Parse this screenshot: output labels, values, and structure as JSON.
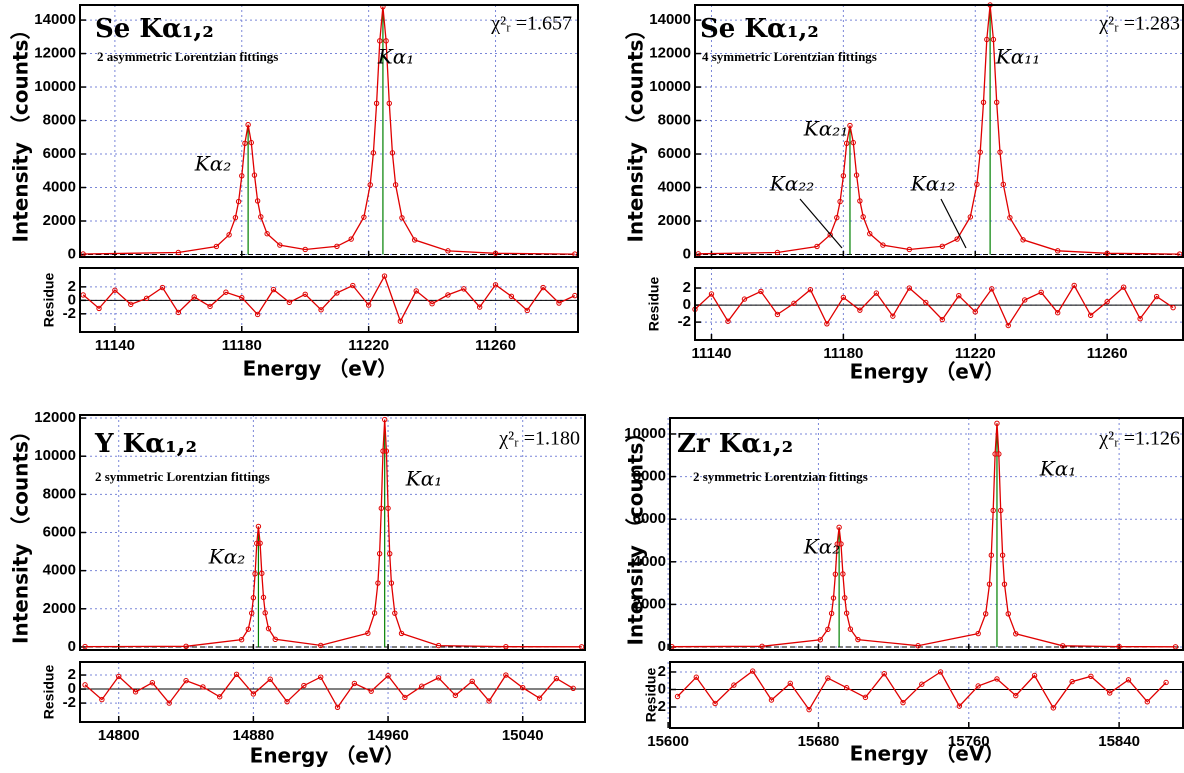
{
  "chart_data": [
    {
      "type": "line",
      "title": "Se Kα₁,₂",
      "subtitle": "2 asymmetric Lorentzian fittings",
      "chi": "χ²ᵣ =1.657",
      "ylabel": "Intensity （counts）",
      "annotations": [
        "Kα₂",
        "Kα₁"
      ],
      "x": [
        11130,
        11160,
        11172,
        11176,
        11178,
        11179,
        11180,
        11181,
        11182,
        11183,
        11184,
        11185,
        11186,
        11188,
        11192,
        11200,
        11210,
        11214.5,
        11218.5,
        11220.5,
        11221.5,
        11222.5,
        11223.5,
        11224.5,
        11225.5,
        11226.5,
        11227.5,
        11228.5,
        11230.5,
        11234.5,
        11245,
        11260,
        11285
      ],
      "values": [
        30,
        120,
        480,
        1175,
        2200,
        3160,
        4700,
        6640,
        7750,
        6680,
        4740,
        3200,
        2250,
        1240,
        560,
        300,
        490,
        920,
        2230,
        4160,
        6070,
        9030,
        12760,
        14800,
        12760,
        9030,
        6070,
        4160,
        2190,
        870,
        217,
        73,
        25
      ],
      "color": "#e00000",
      "vlines": [
        11182,
        11224.5
      ],
      "vline_color": "#008000",
      "xlim": [
        11129,
        11286
      ],
      "ylim": [
        -150,
        14900
      ],
      "xticks": [
        11140,
        11180,
        11220,
        11260
      ],
      "xtick_labels": false,
      "yticks": [
        0,
        2000,
        4000,
        6000,
        8000,
        10000,
        12000,
        14000
      ],
      "grid": true
    },
    {
      "type": "line",
      "ylabel": "Residue",
      "xlabel": "Energy （eV）",
      "x": [
        11130,
        11135,
        11140,
        11145,
        11150,
        11155,
        11160,
        11165,
        11170,
        11175,
        11180,
        11185,
        11190,
        11195,
        11200,
        11205,
        11210,
        11215,
        11220,
        11225,
        11230,
        11235,
        11240,
        11245,
        11250,
        11255,
        11260,
        11265,
        11270,
        11275,
        11280,
        11285
      ],
      "values": [
        0.8,
        -1.2,
        1.5,
        -0.6,
        0.3,
        1.9,
        -1.8,
        0.5,
        -0.9,
        1.2,
        0.4,
        -2.1,
        1.6,
        -0.3,
        0.9,
        -1.4,
        1.1,
        2.2,
        -0.7,
        3.6,
        -3.1,
        1.4,
        -0.5,
        0.8,
        1.7,
        -1.0,
        2.3,
        0.6,
        -1.5,
        1.9,
        -0.4,
        0.7
      ],
      "color": "#e00000",
      "xlim": [
        11129,
        11286
      ],
      "ylim": [
        -4.7,
        4.8
      ],
      "xticks": [
        11140,
        11180,
        11220,
        11260
      ],
      "yticks": [
        -2,
        0,
        2
      ],
      "grid": true
    },
    {
      "type": "line",
      "title": "Se Kα₁,₂",
      "subtitle": "4 symmetric Lorentzian fittings",
      "chi": "χ²ᵣ =1.283",
      "ylabel": "Intensity （counts）",
      "annotations": [
        "Kα₂₁",
        "Kα₁₁",
        "Kα₂₂",
        "Kα₁₂"
      ],
      "x": [
        11136,
        11160,
        11172,
        11176,
        11178,
        11179,
        11180,
        11181,
        11182,
        11183,
        11184,
        11185,
        11186,
        11188,
        11192,
        11200,
        11210,
        11214.5,
        11218.5,
        11220.5,
        11221.5,
        11222.5,
        11223.5,
        11224.5,
        11225.5,
        11226.5,
        11227.5,
        11228.5,
        11230.5,
        11234.5,
        11245,
        11260,
        11282
      ],
      "values": [
        40,
        120,
        480,
        1175,
        2200,
        3160,
        4700,
        6640,
        7700,
        6680,
        4740,
        3200,
        2250,
        1240,
        560,
        300,
        490,
        920,
        2240,
        4190,
        6110,
        9090,
        12840,
        14900,
        12840,
        9090,
        6110,
        4190,
        2200,
        875,
        218,
        73,
        26
      ],
      "color": "#e00000",
      "vlines": [
        11182,
        11224.5
      ],
      "vline_color": "#008000",
      "xlim": [
        11135,
        11283
      ],
      "ylim": [
        -150,
        14900
      ],
      "xticks": [
        11140,
        11180,
        11220,
        11260
      ],
      "xtick_labels": false,
      "yticks": [
        0,
        2000,
        4000,
        6000,
        8000,
        10000,
        12000,
        14000
      ],
      "grid": true
    },
    {
      "type": "line",
      "ylabel": "Residue",
      "xlabel": "Energy （eV）",
      "x": [
        11135,
        11140,
        11145,
        11150,
        11155,
        11160,
        11165,
        11170,
        11175,
        11180,
        11185,
        11190,
        11195,
        11200,
        11205,
        11210,
        11215,
        11220,
        11225,
        11230,
        11235,
        11240,
        11245,
        11250,
        11255,
        11260,
        11265,
        11270,
        11275,
        11280
      ],
      "values": [
        -0.5,
        1.3,
        -1.9,
        0.7,
        1.6,
        -1.1,
        0.2,
        1.8,
        -2.2,
        0.9,
        -0.6,
        1.4,
        -1.3,
        2.0,
        0.3,
        -1.7,
        1.1,
        -0.8,
        1.9,
        -2.4,
        0.6,
        1.5,
        -0.9,
        2.3,
        -1.2,
        0.4,
        2.1,
        -1.6,
        1.0,
        -0.3
      ],
      "color": "#e00000",
      "xlim": [
        11135,
        11283
      ],
      "ylim": [
        -4.1,
        4.35
      ],
      "xticks": [
        11140,
        11180,
        11220,
        11260
      ],
      "yticks": [
        -2,
        0,
        2
      ],
      "grid": true
    },
    {
      "type": "line",
      "title": "Y Kα₁,₂",
      "subtitle": "2 symmetric Lorentzian fittings",
      "chi": "χ²ᵣ =1.180",
      "ylabel": "Intensity （counts）",
      "annotations": [
        "Kα₂",
        "Kα₁"
      ],
      "x": [
        14780,
        14840,
        14873,
        14877,
        14879,
        14880,
        14881,
        14882,
        14883,
        14884,
        14885,
        14886,
        14887,
        14889,
        14893,
        14920,
        14948,
        14952,
        14954,
        14955,
        14956,
        14957,
        14958,
        14959,
        14960,
        14961,
        14962,
        14964,
        14968,
        14990,
        15030,
        15075
      ],
      "values": [
        20,
        35,
        380,
        930,
        1770,
        2580,
        3840,
        5430,
        6320,
        5440,
        3860,
        2600,
        1790,
        960,
        400,
        80,
        720,
        1780,
        3350,
        4890,
        7270,
        10270,
        11920,
        10270,
        7270,
        4890,
        3350,
        1770,
        710,
        72,
        14,
        7
      ],
      "color": "#e00000",
      "vlines": [
        14883,
        14958
      ],
      "vline_color": "#008000",
      "xlim": [
        14777,
        15077
      ],
      "ylim": [
        -160,
        12160
      ],
      "xticks": [
        14800,
        14880,
        14960,
        15040
      ],
      "xtick_labels": false,
      "yticks": [
        0,
        2000,
        4000,
        6000,
        8000,
        10000,
        12000
      ],
      "grid": true
    },
    {
      "type": "line",
      "ylabel": "Residue",
      "xlabel": "Energy （eV）",
      "x": [
        14780,
        14790,
        14800,
        14810,
        14820,
        14830,
        14840,
        14850,
        14860,
        14870,
        14880,
        14890,
        14900,
        14910,
        14920,
        14930,
        14940,
        14950,
        14960,
        14970,
        14980,
        14990,
        15000,
        15010,
        15020,
        15030,
        15040,
        15050,
        15060,
        15070
      ],
      "values": [
        0.6,
        -1.5,
        1.8,
        -0.4,
        0.9,
        -2.0,
        1.2,
        0.3,
        -1.1,
        2.1,
        -0.7,
        1.4,
        -1.8,
        0.5,
        1.7,
        -2.6,
        0.8,
        -0.3,
        1.9,
        -1.2,
        0.4,
        1.6,
        -0.9,
        1.1,
        -1.7,
        2.0,
        0.2,
        -1.3,
        1.5,
        0.1
      ],
      "color": "#e00000",
      "xlim": [
        14777,
        15077
      ],
      "ylim": [
        -4.7,
        3.86
      ],
      "xticks": [
        14800,
        14880,
        14960,
        15040
      ],
      "yticks": [
        -2,
        0,
        2
      ],
      "grid": true
    },
    {
      "type": "line",
      "title": "Zr Kα₁,₂",
      "subtitle": "2 symmetric Lorentzian fittings",
      "chi": "χ²ᵣ =1.126",
      "ylabel": "Intensity （counts）",
      "annotations": [
        "Kα₂",
        "Kα₁"
      ],
      "x": [
        15602,
        15650,
        15681,
        15685,
        15687,
        15688,
        15689,
        15690,
        15691,
        15692,
        15693,
        15694,
        15695,
        15697,
        15701,
        15733,
        15765,
        15769,
        15771,
        15772,
        15773,
        15774,
        15775,
        15776,
        15777,
        15778,
        15779,
        15781,
        15785,
        15810,
        15840,
        15870
      ],
      "values": [
        15,
        35,
        340,
        830,
        1580,
        2300,
        3420,
        4830,
        5620,
        4840,
        3430,
        2310,
        1590,
        840,
        350,
        60,
        630,
        1560,
        2950,
        4310,
        6410,
        9060,
        10500,
        9060,
        6410,
        4310,
        2950,
        1560,
        620,
        55,
        20,
        10
      ],
      "color": "#e00000",
      "vlines": [
        15691,
        15775
      ],
      "vline_color": "#008000",
      "xlim": [
        15601,
        15874
      ],
      "ylim": [
        -140,
        10750
      ],
      "xticks": [
        15600,
        15680,
        15760,
        15840
      ],
      "xtick_labels": false,
      "yticks": [
        0,
        2000,
        4000,
        6000,
        8000,
        10000
      ],
      "grid": true
    },
    {
      "type": "line",
      "ylabel": "Residue",
      "xlabel": "Energy （eV）",
      "x": [
        15605,
        15615,
        15625,
        15635,
        15645,
        15655,
        15665,
        15675,
        15685,
        15695,
        15705,
        15715,
        15725,
        15735,
        15745,
        15755,
        15765,
        15775,
        15785,
        15795,
        15805,
        15815,
        15825,
        15835,
        15845,
        15855,
        15865
      ],
      "values": [
        -0.8,
        1.4,
        -1.6,
        0.5,
        2.1,
        -1.2,
        0.7,
        -2.3,
        1.3,
        0.2,
        -0.9,
        1.8,
        -1.5,
        0.6,
        2.0,
        -1.9,
        0.4,
        1.2,
        -0.7,
        1.6,
        -2.1,
        0.9,
        1.5,
        -0.4,
        1.1,
        -1.4,
        0.8
      ],
      "color": "#e00000",
      "xlim": [
        15601,
        15874
      ],
      "ylim": [
        -4.4,
        3.14
      ],
      "xticks": [
        15600,
        15680,
        15760,
        15840
      ],
      "yticks": [
        -2,
        0,
        2
      ],
      "grid": true
    }
  ]
}
